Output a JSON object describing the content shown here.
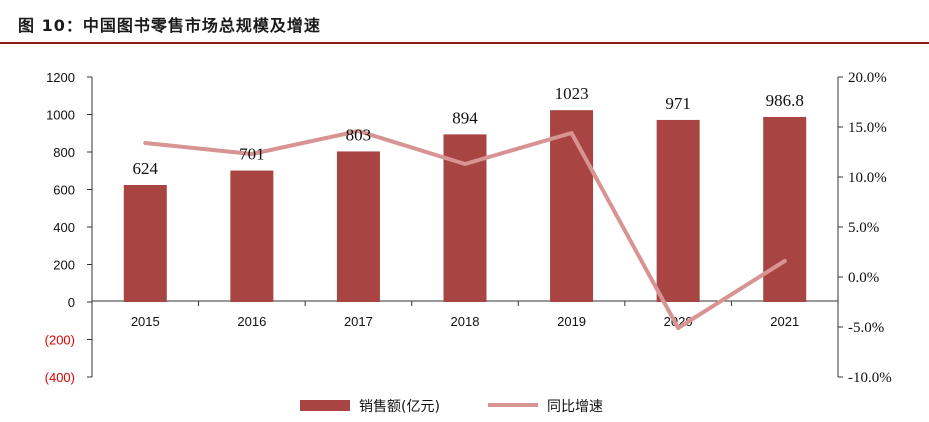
{
  "header": {
    "title": "图 10：中国图书零售市场总规模及增速"
  },
  "chart_data": {
    "type": "bar",
    "categories": [
      "2015",
      "2016",
      "2017",
      "2018",
      "2019",
      "2020",
      "2021"
    ],
    "series": [
      {
        "name": "销售额(亿元)",
        "type": "bar",
        "axis": "left",
        "color": "#A84441",
        "values": [
          624,
          701,
          803,
          894,
          1023,
          971,
          986.8
        ],
        "labels": [
          "624",
          "701",
          "803",
          "894",
          "1023",
          "971",
          "986.8"
        ]
      },
      {
        "name": "同比增速",
        "type": "line",
        "axis": "right",
        "color": "#D79493",
        "values": [
          13.4,
          12.3,
          14.6,
          11.3,
          14.4,
          -5.1,
          1.6
        ]
      }
    ],
    "left_axis": {
      "ylim": [
        -400,
        1200
      ],
      "ticks": [
        1200,
        1000,
        800,
        600,
        400,
        200,
        0,
        -200,
        -400
      ],
      "tick_labels": [
        "1200",
        "1000",
        "800",
        "600",
        "400",
        "200",
        "0",
        "(200)",
        "(400)"
      ],
      "negative_color": "#E00000"
    },
    "right_axis": {
      "ylim": [
        -10,
        20
      ],
      "ticks": [
        20,
        15,
        10,
        5,
        0,
        -5,
        -10
      ],
      "tick_labels": [
        "20.0%",
        "15.0%",
        "10.0%",
        "5.0%",
        "0.0%",
        "-5.0%",
        "-10.0%"
      ]
    },
    "grid": false,
    "legend": "bottom"
  }
}
